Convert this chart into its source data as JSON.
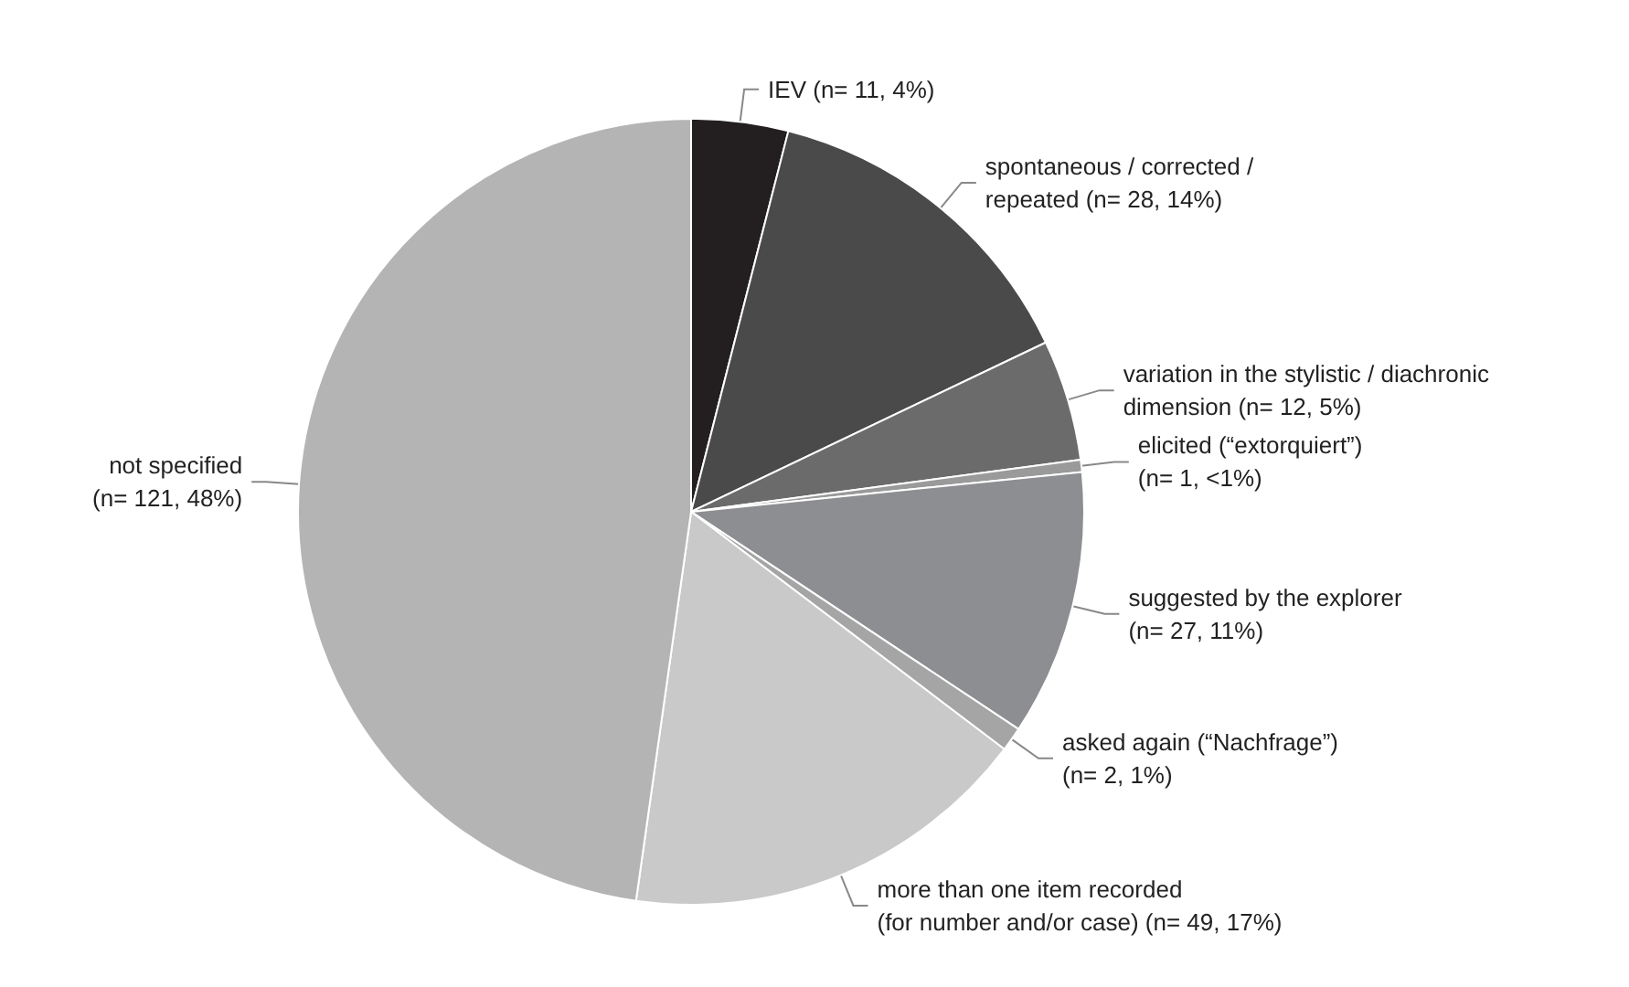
{
  "chart_data": {
    "type": "pie",
    "categories": [
      "IEV (n= 11, 4%)",
      "spontaneous / corrected /\nrepeated (n= 28, 14%)",
      "variation in the stylistic / diachronic\ndimension (n= 12, 5%)",
      "elicited (“extorquiert”)\n(n= 1, <1%)",
      "suggested by the explorer\n(n= 27, 11%)",
      "asked again (“Nachfrage”)\n(n= 2, 1%)",
      "more than one item recorded\n(for number and/or case) (n= 49, 17%)",
      "not specified\n(n= 121, 48%)"
    ],
    "values": [
      4,
      14,
      5,
      0.5,
      11,
      1,
      17,
      48
    ],
    "colors": [
      "#231f20",
      "#4a4a4a",
      "#6b6b6c",
      "#9a9a9a",
      "#8d8e91",
      "#a5a5a5",
      "#c9c9c9",
      "#b4b4b4"
    ],
    "legend": false
  }
}
